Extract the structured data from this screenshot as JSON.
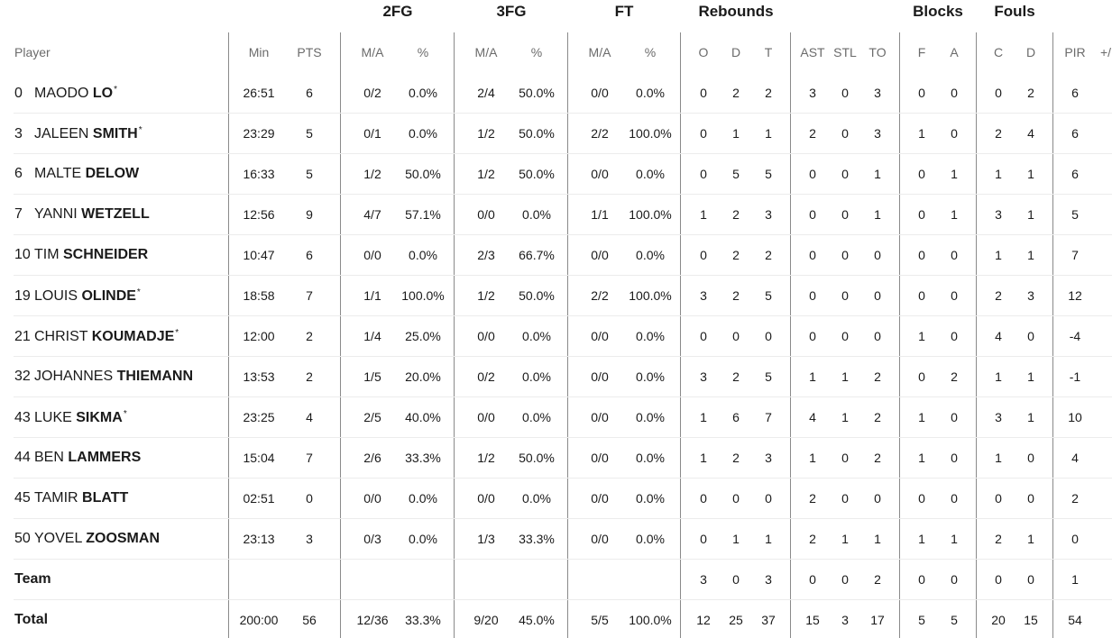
{
  "groups": [
    {
      "key": "2fg",
      "label": "2FG"
    },
    {
      "key": "3fg",
      "label": "3FG"
    },
    {
      "key": "ft",
      "label": "FT"
    },
    {
      "key": "reb",
      "label": "Rebounds"
    },
    {
      "key": "blk",
      "label": "Blocks"
    },
    {
      "key": "fouls",
      "label": "Fouls"
    }
  ],
  "columns": [
    {
      "key": "player",
      "label": "Player"
    },
    {
      "key": "min",
      "label": "Min"
    },
    {
      "key": "pts",
      "label": "PTS"
    },
    {
      "key": "fg2_ma",
      "label": "M/A"
    },
    {
      "key": "fg2_pct",
      "label": "%"
    },
    {
      "key": "fg3_ma",
      "label": "M/A"
    },
    {
      "key": "fg3_pct",
      "label": "%"
    },
    {
      "key": "ft_ma",
      "label": "M/A"
    },
    {
      "key": "ft_pct",
      "label": "%"
    },
    {
      "key": "reb_o",
      "label": "O"
    },
    {
      "key": "reb_d",
      "label": "D"
    },
    {
      "key": "reb_t",
      "label": "T"
    },
    {
      "key": "ast",
      "label": "AST"
    },
    {
      "key": "stl",
      "label": "STL"
    },
    {
      "key": "to",
      "label": "TO"
    },
    {
      "key": "blk_f",
      "label": "F"
    },
    {
      "key": "blk_a",
      "label": "A"
    },
    {
      "key": "foul_c",
      "label": "C"
    },
    {
      "key": "foul_d",
      "label": "D"
    },
    {
      "key": "pir",
      "label": "PIR"
    },
    {
      "key": "pm",
      "label": "+/"
    }
  ],
  "rows": [
    {
      "type": "player",
      "number": "0",
      "first": "MAODO",
      "last": "LO",
      "starter": true,
      "stats": [
        "26:51",
        "6",
        "0/2",
        "0.0%",
        "2/4",
        "50.0%",
        "0/0",
        "0.0%",
        "0",
        "2",
        "2",
        "3",
        "0",
        "3",
        "0",
        "0",
        "0",
        "2",
        "6",
        ""
      ]
    },
    {
      "type": "player",
      "number": "3",
      "first": "JALEEN",
      "last": "SMITH",
      "starter": true,
      "stats": [
        "23:29",
        "5",
        "0/1",
        "0.0%",
        "1/2",
        "50.0%",
        "2/2",
        "100.0%",
        "0",
        "1",
        "1",
        "2",
        "0",
        "3",
        "1",
        "0",
        "2",
        "4",
        "6",
        ""
      ]
    },
    {
      "type": "player",
      "number": "6",
      "first": "MALTE",
      "last": "DELOW",
      "starter": false,
      "stats": [
        "16:33",
        "5",
        "1/2",
        "50.0%",
        "1/2",
        "50.0%",
        "0/0",
        "0.0%",
        "0",
        "5",
        "5",
        "0",
        "0",
        "1",
        "0",
        "1",
        "1",
        "1",
        "6",
        ""
      ]
    },
    {
      "type": "player",
      "number": "7",
      "first": "YANNI",
      "last": "WETZELL",
      "starter": false,
      "stats": [
        "12:56",
        "9",
        "4/7",
        "57.1%",
        "0/0",
        "0.0%",
        "1/1",
        "100.0%",
        "1",
        "2",
        "3",
        "0",
        "0",
        "1",
        "0",
        "1",
        "3",
        "1",
        "5",
        ""
      ]
    },
    {
      "type": "player",
      "number": "10",
      "first": "TIM",
      "last": "SCHNEIDER",
      "starter": false,
      "stats": [
        "10:47",
        "6",
        "0/0",
        "0.0%",
        "2/3",
        "66.7%",
        "0/0",
        "0.0%",
        "0",
        "2",
        "2",
        "0",
        "0",
        "0",
        "0",
        "0",
        "1",
        "1",
        "7",
        ""
      ]
    },
    {
      "type": "player",
      "number": "19",
      "first": "LOUIS",
      "last": "OLINDE",
      "starter": true,
      "stats": [
        "18:58",
        "7",
        "1/1",
        "100.0%",
        "1/2",
        "50.0%",
        "2/2",
        "100.0%",
        "3",
        "2",
        "5",
        "0",
        "0",
        "0",
        "0",
        "0",
        "2",
        "3",
        "12",
        ""
      ]
    },
    {
      "type": "player",
      "number": "21",
      "first": "CHRIST",
      "last": "KOUMADJE",
      "starter": true,
      "stats": [
        "12:00",
        "2",
        "1/4",
        "25.0%",
        "0/0",
        "0.0%",
        "0/0",
        "0.0%",
        "0",
        "0",
        "0",
        "0",
        "0",
        "0",
        "1",
        "0",
        "4",
        "0",
        "-4",
        ""
      ]
    },
    {
      "type": "player",
      "number": "32",
      "first": "JOHANNES",
      "last": "THIEMANN",
      "starter": false,
      "stats": [
        "13:53",
        "2",
        "1/5",
        "20.0%",
        "0/2",
        "0.0%",
        "0/0",
        "0.0%",
        "3",
        "2",
        "5",
        "1",
        "1",
        "2",
        "0",
        "2",
        "1",
        "1",
        "-1",
        ""
      ]
    },
    {
      "type": "player",
      "number": "43",
      "first": "LUKE",
      "last": "SIKMA",
      "starter": true,
      "stats": [
        "23:25",
        "4",
        "2/5",
        "40.0%",
        "0/0",
        "0.0%",
        "0/0",
        "0.0%",
        "1",
        "6",
        "7",
        "4",
        "1",
        "2",
        "1",
        "0",
        "3",
        "1",
        "10",
        ""
      ]
    },
    {
      "type": "player",
      "number": "44",
      "first": "BEN",
      "last": "LAMMERS",
      "starter": false,
      "stats": [
        "15:04",
        "7",
        "2/6",
        "33.3%",
        "1/2",
        "50.0%",
        "0/0",
        "0.0%",
        "1",
        "2",
        "3",
        "1",
        "0",
        "2",
        "1",
        "0",
        "1",
        "0",
        "4",
        ""
      ]
    },
    {
      "type": "player",
      "number": "45",
      "first": "TAMIR",
      "last": "BLATT",
      "starter": false,
      "stats": [
        "02:51",
        "0",
        "0/0",
        "0.0%",
        "0/0",
        "0.0%",
        "0/0",
        "0.0%",
        "0",
        "0",
        "0",
        "2",
        "0",
        "0",
        "0",
        "0",
        "0",
        "0",
        "2",
        ""
      ]
    },
    {
      "type": "player",
      "number": "50",
      "first": "YOVEL",
      "last": "ZOOSMAN",
      "starter": false,
      "stats": [
        "23:13",
        "3",
        "0/3",
        "0.0%",
        "1/3",
        "33.3%",
        "0/0",
        "0.0%",
        "0",
        "1",
        "1",
        "2",
        "1",
        "1",
        "1",
        "1",
        "2",
        "1",
        "0",
        ""
      ]
    },
    {
      "type": "team",
      "label": "Team",
      "stats": [
        "",
        "",
        "",
        "",
        "",
        "",
        "",
        "",
        "3",
        "0",
        "3",
        "0",
        "0",
        "2",
        "0",
        "0",
        "0",
        "0",
        "1",
        ""
      ]
    },
    {
      "type": "total",
      "label": "Total",
      "stats": [
        "200:00",
        "56",
        "12/36",
        "33.3%",
        "9/20",
        "45.0%",
        "5/5",
        "100.0%",
        "12",
        "25",
        "37",
        "15",
        "3",
        "17",
        "5",
        "5",
        "20",
        "15",
        "54",
        ""
      ]
    }
  ]
}
